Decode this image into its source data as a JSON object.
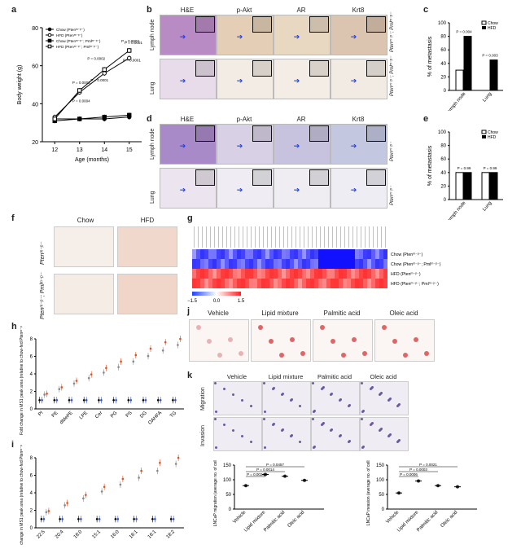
{
  "panel_letters": [
    "a",
    "b",
    "c",
    "d",
    "e",
    "f",
    "g",
    "h",
    "i",
    "j",
    "k"
  ],
  "chart_data": {
    "type": "line",
    "xlabel": "Age (months)",
    "ylabel": "Body weight (g)",
    "ylim": [
      20,
      80
    ],
    "x": [
      12,
      13,
      14,
      15
    ],
    "series": [
      {
        "name": "Chow (Ptenᵐ⁻ᵖ⁻)",
        "marker": "filled-circle",
        "values": [
          32,
          32,
          32,
          33
        ]
      },
      {
        "name": "HFD (Ptenᵐ⁻ᵖ⁻)",
        "marker": "open-circle",
        "values": [
          33,
          46,
          56,
          64
        ]
      },
      {
        "name": "Chow (Ptenᵐ⁻ᵖ⁻; Pmlᵐ⁻ᵖ⁻)",
        "marker": "filled-square",
        "values": [
          31,
          32,
          33,
          34
        ]
      },
      {
        "name": "HFD (Ptenᵐ⁻ᵖ⁻; Pmlᵐ⁻ᵖ⁻)",
        "marker": "open-square",
        "values": [
          32,
          47,
          58,
          68
        ]
      }
    ],
    "yticks": [
      20,
      40,
      60,
      80
    ],
    "annotations": [
      "P = 0.0001",
      "P = 0.0003",
      "P = 0.0004",
      "P = 0.0002",
      "P = 0.0001",
      "P = 0.0003",
      "P = 0.0001"
    ]
  },
  "bar_c": {
    "title": "% of metastasis",
    "legend": [
      "Chow",
      "HFD"
    ],
    "categories": [
      "Lymph node",
      "Lung"
    ],
    "chow": [
      30,
      0
    ],
    "hfd": [
      80,
      45
    ],
    "pvals": [
      "P = 0.004",
      "P = 0.003"
    ],
    "yticks": [
      "0",
      "20",
      "40",
      "60",
      "80",
      "100"
    ]
  },
  "bar_e": {
    "title": "% of metastasis",
    "legend": [
      "Chow",
      "HFD"
    ],
    "categories": [
      "Lymph node",
      "Lung"
    ],
    "chow": [
      40,
      40
    ],
    "hfd": [
      40,
      40
    ],
    "pvals": [
      "P = 0.99",
      "P = 0.99"
    ],
    "yticks": [
      "0",
      "20",
      "40",
      "60",
      "80",
      "100"
    ]
  },
  "stain_cols": [
    "H&E",
    "p-Akt",
    "AR",
    "Krt8"
  ],
  "tissue_rows": [
    "Lymph node",
    "Lung"
  ],
  "genotype_b": [
    "Ptenᵐ⁻ᵖ⁻; Pmlᵐ⁻ᵖ⁻",
    "Ptenᵐ⁻ᵖ⁻; Pmlᵐ⁻ᵖ⁻"
  ],
  "genotype_d": [
    "Ptenᵐ⁻ᵖ⁻",
    "Ptenᵐ⁻ᵖ⁻"
  ],
  "f": {
    "cols": [
      "Chow",
      "HFD"
    ],
    "rows": [
      "Ptenᵐ⁻ᵖ⁻",
      "Ptenᵐ⁻ᵖ⁻; Pmlᵐ⁻ᵖ⁻"
    ]
  },
  "g": {
    "rows": [
      "Chow (Ptenᵐ⁻ᵖ⁻)",
      "Chow (Ptenᵐ⁻ᵖ⁻; Pmlᵐ⁻ᵖ⁻)",
      "HFD (Ptenᵐ⁻ᵖ⁻)",
      "HFD (Ptenᵐ⁻ᵖ⁻; Pmlᵐ⁻ᵖ⁻)"
    ],
    "scale": [
      "−1.5",
      "0.0",
      "1.5"
    ]
  },
  "h": {
    "ylabel": "Fold change in MS1 peak area (relative to chow-fed Ptenᵐ⁻ᵖ⁻ mice)",
    "categories": [
      "PI",
      "PE",
      "dMePE",
      "LPE",
      "Cer",
      "PG",
      "PS",
      "DG",
      "OAHFA",
      "TG"
    ]
  },
  "i": {
    "ylabel": "Fold change in MS1 peak area (relative to chow-fed Ptenᵐ⁻ᵖ⁻ mice)",
    "categories": [
      "22:5",
      "20:4",
      "18:0",
      "15:1",
      "16:0",
      "18:1",
      "16:1",
      "18:2"
    ]
  },
  "j": {
    "cols": [
      "Vehicle",
      "Lipid mixture",
      "Palmitic acid",
      "Oleic acid"
    ]
  },
  "k": {
    "cols": [
      "Vehicle",
      "Lipid mixture",
      "Palmitic acid",
      "Oleic acid"
    ],
    "rows": [
      "Migration",
      "Invasion"
    ],
    "mig_ylabel": "LNCaP migration (average no. of cells/field)",
    "inv_ylabel": "LNCaP invasion (average no. of cells/field)",
    "mig_pvals": [
      "P = 0.0457",
      "P = 0.0014",
      "P = 0.0024"
    ],
    "inv_pvals": [
      "P = 0.0021",
      "P = 0.0003",
      "P = 0.0006"
    ]
  }
}
